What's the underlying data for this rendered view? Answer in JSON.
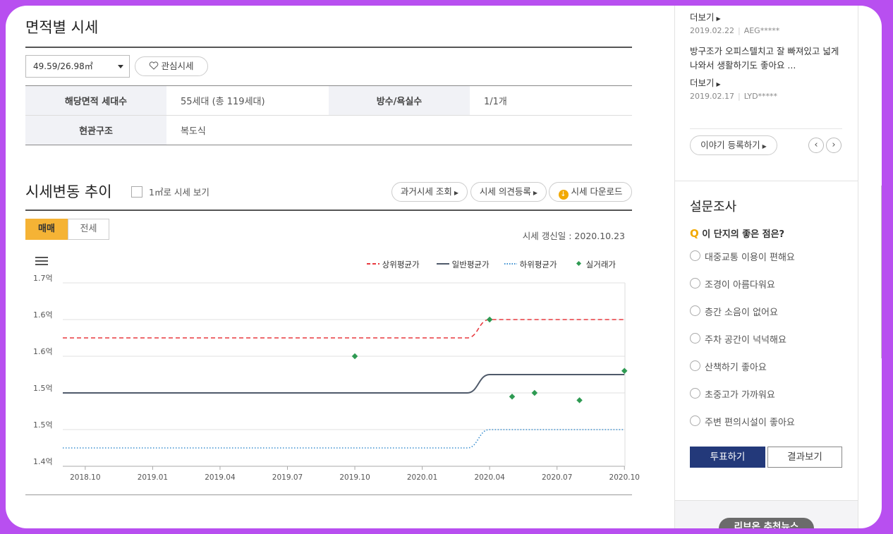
{
  "area_section": {
    "title": "면적별 시세",
    "selected_area": "49.59/26.98㎡",
    "favorite_label": "관심시세",
    "info": [
      {
        "label": "해당면적 세대수",
        "value": "55세대 (총 119세대)",
        "label2": "방수/욕실수",
        "value2": "1/1개"
      },
      {
        "label": "현관구조",
        "value": "복도식"
      }
    ]
  },
  "trend_section": {
    "title": "시세변동 추이",
    "per_m2_label": "1㎡로 시세 보기",
    "buttons": {
      "past_price": "과거시세 조회",
      "opinion": "시세 의견등록",
      "download": "시세 다운로드"
    },
    "tabs": [
      {
        "label": "매매",
        "active": true
      },
      {
        "label": "전세",
        "active": false
      }
    ],
    "updated": "시세 갱신일 : 2020.10.23"
  },
  "chart_data": {
    "type": "line",
    "legend": [
      {
        "name": "상위평균가",
        "color": "#e8393f",
        "style": "dashed"
      },
      {
        "name": "일반평균가",
        "color": "#4f5a6a",
        "style": "solid"
      },
      {
        "name": "하위평균가",
        "color": "#3a8fd0",
        "style": "dotted"
      },
      {
        "name": "실거래가",
        "color": "#2e9a52",
        "style": "diamond"
      }
    ],
    "y_ticks": [
      "1.7억",
      "1.6억",
      "1.6억",
      "1.5억",
      "1.5억",
      "1.4억"
    ],
    "y_values": [
      1.7,
      1.65,
      1.6,
      1.55,
      1.5,
      1.45
    ],
    "ylim": [
      1.45,
      1.7
    ],
    "x_ticks": [
      "2018.10",
      "2019.01",
      "2019.04",
      "2019.07",
      "2019.10",
      "2020.01",
      "2020.04",
      "2020.07",
      "2020.10"
    ],
    "series": [
      {
        "name": "상위평균가",
        "points": [
          [
            "2018.09",
            1.625
          ],
          [
            "2020.03",
            1.625
          ],
          [
            "2020.04",
            1.65
          ],
          [
            "2020.10",
            1.65
          ]
        ]
      },
      {
        "name": "일반평균가",
        "points": [
          [
            "2018.09",
            1.55
          ],
          [
            "2020.03",
            1.55
          ],
          [
            "2020.04",
            1.575
          ],
          [
            "2020.10",
            1.575
          ]
        ]
      },
      {
        "name": "하위평균가",
        "points": [
          [
            "2018.09",
            1.475
          ],
          [
            "2020.03",
            1.475
          ],
          [
            "2020.04",
            1.5
          ],
          [
            "2020.10",
            1.5
          ]
        ]
      }
    ],
    "transactions": [
      [
        "2019.10",
        1.6
      ],
      [
        "2020.04",
        1.65
      ],
      [
        "2020.05",
        1.545
      ],
      [
        "2020.06",
        1.55
      ],
      [
        "2020.08",
        1.54
      ],
      [
        "2020.10",
        1.58
      ]
    ]
  },
  "stories": {
    "more_label": "더보기",
    "items": [
      {
        "date": "2019.02.22",
        "user": "AEG*****",
        "text": ""
      },
      {
        "date": "2019.02.17",
        "user": "LYD*****",
        "text": "방구조가 오피스텔치고 잘 빠져있고 넓게나와서 생활하기도 좋아요 ..."
      }
    ],
    "register_label": "이야기 등록하기",
    "prev_icon": "‹",
    "next_icon": "›"
  },
  "survey": {
    "title": "설문조사",
    "q_mark": "Q",
    "question": "이 단지의 좋은 점은?",
    "options": [
      "대중교통 이용이 편해요",
      "조경이 아름다워요",
      "층간 소음이 없어요",
      "주차 공간이 넉넉해요",
      "산책하기 좋아요",
      "초중고가 가까워요",
      "주변 편의시설이 좋아요"
    ],
    "vote_label": "투표하기",
    "result_label": "결과보기"
  },
  "news_badge": "리브온 추천뉴스"
}
